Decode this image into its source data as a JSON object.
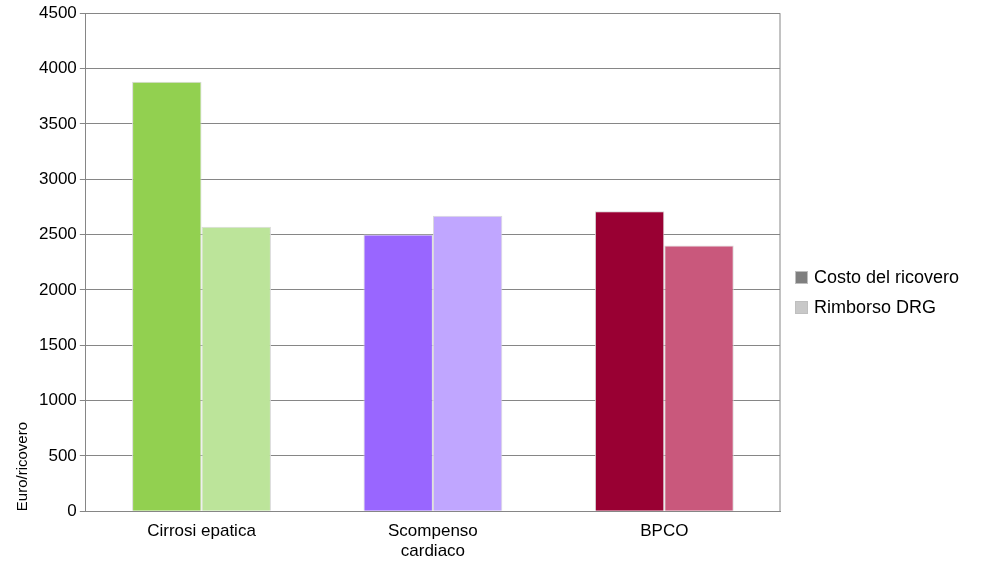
{
  "chart_data": {
    "type": "bar",
    "ylabel": "Euro/ricovero",
    "categories": [
      "Cirrosi epatica",
      "Scompenso cardiaco",
      "BPCO"
    ],
    "series": [
      {
        "name": "Costo del ricovero",
        "color": "#7f7f7f",
        "colors": [
          "#92d050",
          "#9966ff",
          "#990033"
        ],
        "values": [
          3880,
          2500,
          2710
        ]
      },
      {
        "name": "Rimborso DRG",
        "color": "#c8c8c8",
        "colors": [
          "#bce49a",
          "#c0a6ff",
          "#c9587c"
        ],
        "values": [
          2570,
          2670,
          2400
        ]
      }
    ],
    "ylim": [
      0,
      4500
    ],
    "yticks": [
      0,
      500,
      1000,
      1500,
      2000,
      2500,
      3000,
      3500,
      4000,
      4500
    ],
    "grid": "y",
    "legend": "right"
  }
}
